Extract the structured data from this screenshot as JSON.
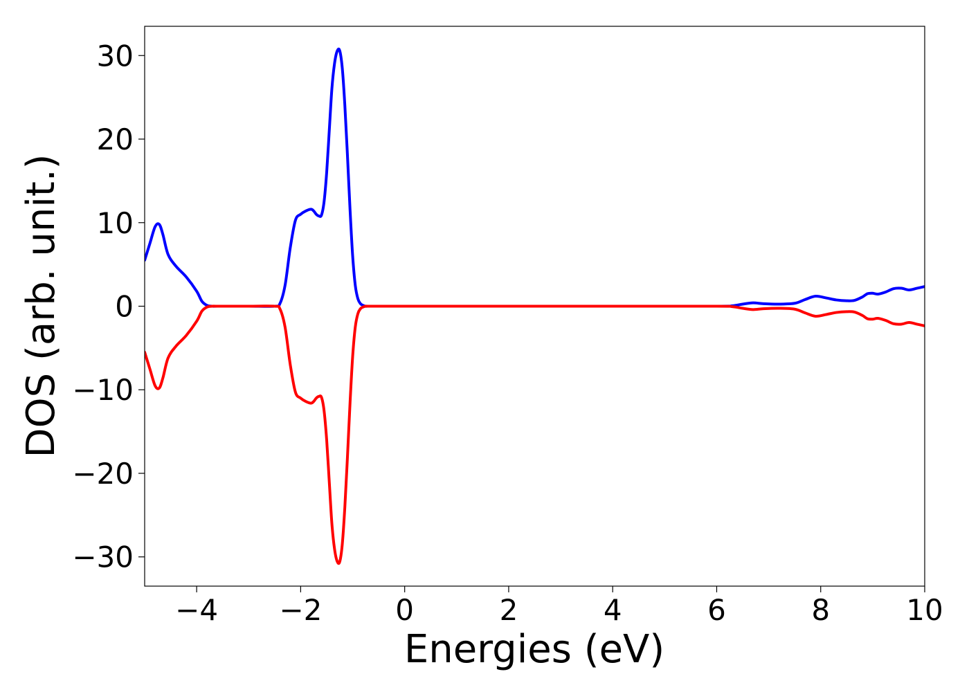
{
  "chart_data": {
    "type": "line",
    "xlabel": "Energies (eV)",
    "ylabel": "DOS (arb. unit.)",
    "xlim": [
      -5,
      10
    ],
    "ylim": [
      -33.5,
      33.5
    ],
    "xticks": [
      -4,
      -2,
      0,
      2,
      4,
      6,
      8,
      10
    ],
    "xtick_labels": [
      "−4",
      "−2",
      "0",
      "2",
      "4",
      "6",
      "8",
      "10"
    ],
    "yticks": [
      30,
      20,
      10,
      0,
      -10,
      -20,
      -30
    ],
    "ytick_labels": [
      "30",
      "20",
      "10",
      "0",
      "−10",
      "−20",
      "−30"
    ],
    "grid": false,
    "legend": "none",
    "series": [
      {
        "color": "#0000ff",
        "x": [
          -5.0,
          -4.9,
          -4.8,
          -4.72,
          -4.65,
          -4.55,
          -4.4,
          -4.2,
          -4.0,
          -3.9,
          -3.8,
          -3.7,
          -3.6,
          -3.0,
          -2.5,
          -2.4,
          -2.3,
          -2.2,
          -2.1,
          -2.0,
          -1.9,
          -1.8,
          -1.75,
          -1.7,
          -1.65,
          -1.6,
          -1.55,
          -1.5,
          -1.45,
          -1.4,
          -1.35,
          -1.3,
          -1.25,
          -1.2,
          -1.15,
          -1.1,
          -1.05,
          -1.0,
          -0.95,
          -0.9,
          -0.85,
          -0.8,
          -0.75,
          -0.7,
          -0.65,
          -0.6,
          -0.5,
          0.0,
          2.0,
          4.0,
          6.0,
          6.3,
          6.5,
          6.7,
          6.9,
          7.2,
          7.5,
          7.7,
          7.9,
          8.1,
          8.3,
          8.5,
          8.65,
          8.8,
          8.9,
          9.0,
          9.1,
          9.25,
          9.4,
          9.55,
          9.7,
          9.85,
          10.0
        ],
        "y": [
          5.5,
          7.5,
          9.5,
          9.8,
          8.6,
          6.2,
          4.8,
          3.5,
          1.8,
          0.6,
          0.1,
          0.0,
          0.0,
          0.0,
          0.0,
          0.3,
          2.5,
          7.0,
          10.3,
          11.0,
          11.4,
          11.6,
          11.4,
          11.0,
          10.8,
          10.9,
          12.5,
          16.0,
          21.0,
          26.0,
          29.0,
          30.5,
          30.6,
          28.5,
          24.0,
          18.0,
          11.5,
          6.0,
          2.5,
          0.9,
          0.3,
          0.1,
          0.0,
          0.0,
          0.0,
          0.0,
          0.0,
          0.0,
          0.0,
          0.0,
          0.0,
          0.05,
          0.25,
          0.4,
          0.3,
          0.25,
          0.35,
          0.8,
          1.2,
          1.0,
          0.75,
          0.65,
          0.7,
          1.1,
          1.5,
          1.55,
          1.45,
          1.7,
          2.1,
          2.15,
          1.95,
          2.15,
          2.35
        ]
      },
      {
        "color": "#ff0000",
        "x": [
          -5.0,
          -4.9,
          -4.8,
          -4.72,
          -4.65,
          -4.55,
          -4.4,
          -4.2,
          -4.0,
          -3.9,
          -3.8,
          -3.7,
          -3.6,
          -3.0,
          -2.5,
          -2.4,
          -2.3,
          -2.2,
          -2.1,
          -2.0,
          -1.9,
          -1.8,
          -1.75,
          -1.7,
          -1.65,
          -1.6,
          -1.55,
          -1.5,
          -1.45,
          -1.4,
          -1.35,
          -1.3,
          -1.25,
          -1.2,
          -1.15,
          -1.1,
          -1.05,
          -1.0,
          -0.95,
          -0.9,
          -0.85,
          -0.8,
          -0.75,
          -0.7,
          -0.65,
          -0.6,
          -0.5,
          0.0,
          2.0,
          4.0,
          6.0,
          6.3,
          6.5,
          6.7,
          6.9,
          7.2,
          7.5,
          7.7,
          7.9,
          8.1,
          8.3,
          8.5,
          8.65,
          8.8,
          8.9,
          9.0,
          9.1,
          9.25,
          9.4,
          9.55,
          9.7,
          9.85,
          10.0
        ],
        "y": [
          -5.5,
          -7.5,
          -9.5,
          -9.8,
          -8.6,
          -6.2,
          -4.8,
          -3.5,
          -1.8,
          -0.6,
          -0.1,
          0.0,
          0.0,
          0.0,
          0.0,
          -0.3,
          -2.5,
          -7.0,
          -10.3,
          -11.0,
          -11.4,
          -11.6,
          -11.4,
          -11.0,
          -10.8,
          -10.9,
          -12.5,
          -16.0,
          -21.0,
          -26.0,
          -29.0,
          -30.5,
          -30.6,
          -28.5,
          -24.0,
          -18.0,
          -11.5,
          -6.0,
          -2.5,
          -0.9,
          -0.3,
          -0.1,
          0.0,
          0.0,
          0.0,
          0.0,
          0.0,
          0.0,
          0.0,
          0.0,
          0.0,
          -0.05,
          -0.25,
          -0.4,
          -0.3,
          -0.25,
          -0.35,
          -0.8,
          -1.2,
          -1.0,
          -0.75,
          -0.65,
          -0.7,
          -1.1,
          -1.5,
          -1.55,
          -1.45,
          -1.7,
          -2.1,
          -2.15,
          -1.95,
          -2.15,
          -2.35
        ]
      }
    ]
  }
}
